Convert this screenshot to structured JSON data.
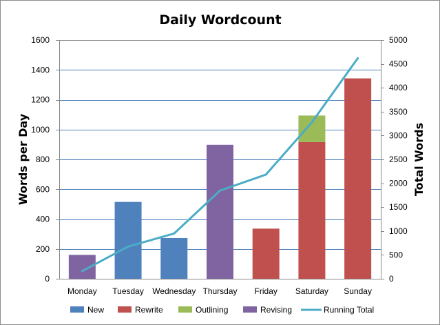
{
  "chart_data": {
    "type": "bar",
    "title": "Daily Wordcount",
    "ylabel": "Words per Day",
    "y2label": "Total Words",
    "categories": [
      "Monday",
      "Tuesday",
      "Wednesday",
      "Thursday",
      "Friday",
      "Saturday",
      "Sunday"
    ],
    "ylim": [
      0,
      1600
    ],
    "yticks": [
      0,
      200,
      400,
      600,
      800,
      1000,
      1200,
      1400,
      1600
    ],
    "y2lim": [
      0,
      5000
    ],
    "y2ticks": [
      0,
      500,
      1000,
      1500,
      2000,
      2500,
      3000,
      3500,
      4000,
      4500,
      5000
    ],
    "stacked": true,
    "grid": true,
    "legend_position": "bottom",
    "series": [
      {
        "name": "New",
        "color": "#4f81bd",
        "values": [
          0,
          515,
          273,
          0,
          0,
          0,
          0
        ]
      },
      {
        "name": "Rewrite",
        "color": "#c0504d",
        "values": [
          0,
          0,
          0,
          0,
          336,
          916,
          1343
        ]
      },
      {
        "name": "Outlining",
        "color": "#9bbb59",
        "values": [
          0,
          0,
          0,
          0,
          0,
          178,
          0
        ]
      },
      {
        "name": "Revising",
        "color": "#8064a2",
        "values": [
          160,
          0,
          0,
          898,
          0,
          0,
          0
        ]
      }
    ],
    "line_series": {
      "name": "Running Total",
      "color": "#4bacc6",
      "axis": "secondary",
      "values": [
        160,
        675,
        948,
        1846,
        2182,
        3276,
        4619
      ]
    }
  }
}
